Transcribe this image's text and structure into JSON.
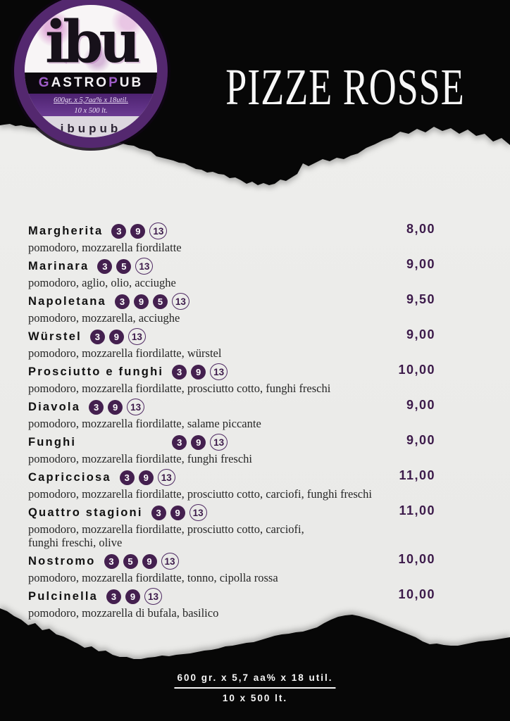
{
  "header": {
    "title": "PIZZE ROSSE"
  },
  "logo": {
    "monogram": "ibu",
    "brand_parts": [
      {
        "text": "G",
        "accent": true
      },
      {
        "text": "ASTRO",
        "accent": false
      },
      {
        "text": "P",
        "accent": true
      },
      {
        "text": "UB",
        "accent": false
      }
    ],
    "band_line1": "600gr. x 5,7aa% x 18util.",
    "band_line2": "10 x 500 lt.",
    "handle": "ibupub"
  },
  "menu": {
    "items": [
      {
        "name": "Margherita",
        "badges": [
          {
            "label": "3",
            "style": "filled"
          },
          {
            "label": "9",
            "style": "filled"
          },
          {
            "label": "13",
            "style": "outline"
          }
        ],
        "desc": "pomodoro, mozzarella fiordilatte",
        "price": "8,00",
        "badges_offset": false
      },
      {
        "name": "Marinara",
        "badges": [
          {
            "label": "3",
            "style": "filled"
          },
          {
            "label": "5",
            "style": "filled"
          },
          {
            "label": "13",
            "style": "outline"
          }
        ],
        "desc": "pomodoro, aglio, olio, acciughe",
        "price": "9,00",
        "badges_offset": false
      },
      {
        "name": "Napoletana",
        "badges": [
          {
            "label": "3",
            "style": "filled"
          },
          {
            "label": "9",
            "style": "filled"
          },
          {
            "label": "5",
            "style": "filled"
          },
          {
            "label": "13",
            "style": "outline"
          }
        ],
        "desc": "pomodoro, mozzarella, acciughe",
        "price": "9,50",
        "badges_offset": false
      },
      {
        "name": "Würstel",
        "badges": [
          {
            "label": "3",
            "style": "filled"
          },
          {
            "label": "9",
            "style": "filled"
          },
          {
            "label": "13",
            "style": "outline"
          }
        ],
        "desc": "pomodoro, mozzarella fiordilatte, würstel",
        "price": "9,00",
        "badges_offset": false
      },
      {
        "name": "Prosciutto e funghi",
        "badges": [
          {
            "label": "3",
            "style": "filled"
          },
          {
            "label": "9",
            "style": "filled"
          },
          {
            "label": "13",
            "style": "outline"
          }
        ],
        "desc": "pomodoro, mozzarella fiordilatte, prosciutto cotto, funghi freschi",
        "price": "10,00",
        "badges_offset": false
      },
      {
        "name": "Diavola",
        "badges": [
          {
            "label": "3",
            "style": "filled"
          },
          {
            "label": "9",
            "style": "filled"
          },
          {
            "label": "13",
            "style": "outline"
          }
        ],
        "desc": "pomodoro, mozzarella fiordilatte, salame piccante",
        "price": "9,00",
        "badges_offset": false
      },
      {
        "name": "Funghi",
        "badges": [
          {
            "label": "3",
            "style": "filled"
          },
          {
            "label": "9",
            "style": "filled"
          },
          {
            "label": "13",
            "style": "outline"
          }
        ],
        "desc": "pomodoro, mozzarella fiordilatte, funghi freschi",
        "price": "9,00",
        "badges_offset": true
      },
      {
        "name": "Capricciosa",
        "badges": [
          {
            "label": "3",
            "style": "filled"
          },
          {
            "label": "9",
            "style": "filled"
          },
          {
            "label": "13",
            "style": "outline"
          }
        ],
        "desc": "pomodoro, mozzarella fiordilatte, prosciutto cotto, carciofi, funghi freschi",
        "price": "11,00",
        "badges_offset": false
      },
      {
        "name": "Quattro stagioni",
        "badges": [
          {
            "label": "3",
            "style": "filled"
          },
          {
            "label": "9",
            "style": "filled"
          },
          {
            "label": "13",
            "style": "outline"
          }
        ],
        "desc": "pomodoro, mozzarella fiordilatte, prosciutto cotto, carciofi,\nfunghi freschi, olive",
        "price": "11,00",
        "badges_offset": false
      },
      {
        "name": "Nostromo",
        "badges": [
          {
            "label": "3",
            "style": "filled"
          },
          {
            "label": "5",
            "style": "filled"
          },
          {
            "label": "9",
            "style": "filled"
          },
          {
            "label": "13",
            "style": "outline"
          }
        ],
        "desc": "pomodoro, mozzarella fiordilatte, tonno, cipolla rossa",
        "price": "10,00",
        "badges_offset": false
      },
      {
        "name": "Pulcinella",
        "badges": [
          {
            "label": "3",
            "style": "filled"
          },
          {
            "label": "9",
            "style": "filled"
          },
          {
            "label": "13",
            "style": "outline"
          }
        ],
        "desc": "pomodoro, mozzarella di bufala, basilico",
        "price": "10,00",
        "badges_offset": false
      }
    ]
  },
  "footer": {
    "line1": "600 gr. x 5,7 aa% x 18 util.",
    "line2": "10 x 500 lt."
  },
  "colors": {
    "paper": "#ececea",
    "ink_black": "#070707",
    "badge_filled": "#44204f",
    "badge_outline": "#4f2a63",
    "price": "#3c1a4a",
    "ring": "#54286f",
    "accent": "#9e5cc7"
  }
}
